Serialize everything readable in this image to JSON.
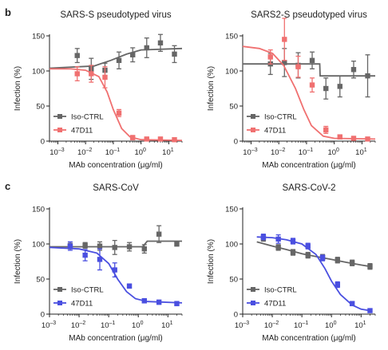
{
  "figure": {
    "panel_letters": [
      "b",
      "c"
    ]
  },
  "chart_data": [
    {
      "type": "scatter",
      "title": "SARS-S pseudotyped virus",
      "xlabel": "MAb concentration (μg/ml)",
      "ylabel": "Infection (%)",
      "xscale": "log",
      "xlim": [
        0.0005,
        30
      ],
      "ylim": [
        0,
        150
      ],
      "xticks": [
        "10^-3",
        "10^-2",
        "10^-1",
        "10^0",
        "10^1"
      ],
      "yticks": [
        0,
        50,
        100,
        150
      ],
      "legend": "bottom-left",
      "series": [
        {
          "name": "Iso-CTRL",
          "color": "#666666",
          "marker": "square",
          "x": [
            0.005,
            0.016,
            0.05,
            0.16,
            0.5,
            1.6,
            5,
            16
          ],
          "y": [
            122,
            103,
            101,
            115,
            123,
            133,
            140,
            124
          ],
          "err": [
            10,
            15,
            10,
            12,
            10,
            14,
            12,
            12
          ],
          "fit": [
            [
              0.0005,
              104
            ],
            [
              0.02,
              107
            ],
            [
              0.08,
              115
            ],
            [
              0.3,
              124
            ],
            [
              1,
              130
            ],
            [
              30,
              132
            ]
          ]
        },
        {
          "name": "47D11",
          "color": "#f07070",
          "marker": "square",
          "x": [
            0.005,
            0.016,
            0.05,
            0.16,
            0.5,
            1.6,
            5,
            16
          ],
          "y": [
            96,
            96,
            91,
            40,
            5,
            3,
            3,
            2
          ],
          "err": [
            10,
            12,
            15,
            5,
            3,
            2,
            2,
            2
          ],
          "fit": [
            [
              0.0005,
              103
            ],
            [
              0.003,
              103
            ],
            [
              0.01,
              101
            ],
            [
              0.03,
              92
            ],
            [
              0.06,
              70
            ],
            [
              0.1,
              45
            ],
            [
              0.2,
              18
            ],
            [
              0.4,
              6
            ],
            [
              1,
              2
            ],
            [
              30,
              1
            ]
          ]
        }
      ]
    },
    {
      "type": "scatter",
      "title": "SARS2-S pseudotyped virus",
      "xlabel": "MAb concentration (μg/ml)",
      "ylabel": "Infection (%)",
      "xscale": "log",
      "xlim": [
        0.0005,
        30
      ],
      "ylim": [
        0,
        150
      ],
      "xticks": [
        "10^-3",
        "10^-2",
        "10^-1",
        "10^0",
        "10^1"
      ],
      "yticks": [
        0,
        50,
        100,
        150
      ],
      "legend": "bottom-left",
      "series": [
        {
          "name": "Iso-CTRL",
          "color": "#666666",
          "marker": "square",
          "x": [
            0.005,
            0.016,
            0.05,
            0.16,
            0.5,
            1.6,
            5,
            16
          ],
          "y": [
            110,
            112,
            108,
            115,
            75,
            78,
            102,
            93
          ],
          "err": [
            15,
            20,
            18,
            12,
            15,
            15,
            12,
            30
          ],
          "fit": [
            [
              0.0005,
              110
            ],
            [
              0.3,
              110
            ],
            [
              0.31,
              93
            ],
            [
              30,
              93
            ]
          ]
        },
        {
          "name": "47D11",
          "color": "#f07070",
          "marker": "square",
          "x": [
            0.005,
            0.016,
            0.05,
            0.16,
            0.5,
            1.6,
            5,
            16
          ],
          "y": [
            120,
            145,
            106,
            80,
            16,
            6,
            4,
            3
          ],
          "err": [
            10,
            30,
            15,
            10,
            5,
            3,
            2,
            2
          ],
          "fit": [
            [
              0.0005,
              135
            ],
            [
              0.002,
              132
            ],
            [
              0.006,
              125
            ],
            [
              0.015,
              108
            ],
            [
              0.04,
              75
            ],
            [
              0.08,
              45
            ],
            [
              0.15,
              22
            ],
            [
              0.4,
              7
            ],
            [
              1,
              4
            ],
            [
              30,
              3
            ]
          ]
        }
      ]
    },
    {
      "type": "scatter",
      "title": "SARS-CoV",
      "xlabel": "MAb concentration (μg/ml)",
      "ylabel": "Infection (%)",
      "xscale": "log",
      "xlim": [
        0.001,
        30
      ],
      "ylim": [
        0,
        150
      ],
      "xticks": [
        "10^-3",
        "10^-2",
        "10^-1",
        "10^0",
        "10^1"
      ],
      "yticks": [
        0,
        50,
        100,
        150
      ],
      "legend": "bottom-left",
      "series": [
        {
          "name": "Iso-CTRL",
          "color": "#666666",
          "marker": "square",
          "x": [
            0.005,
            0.016,
            0.05,
            0.16,
            0.5,
            1.6,
            5,
            20
          ],
          "y": [
            97,
            98,
            97,
            95,
            96,
            93,
            114,
            100
          ],
          "err": [
            4,
            4,
            6,
            10,
            6,
            6,
            12,
            3
          ],
          "fit": [
            [
              0.001,
              96
            ],
            [
              1.4,
              96
            ],
            [
              2,
              104
            ],
            [
              30,
              104
            ]
          ]
        },
        {
          "name": "47D11",
          "color": "#4a4fe0",
          "marker": "square",
          "x": [
            0.005,
            0.016,
            0.05,
            0.16,
            0.5,
            1.6,
            5,
            20
          ],
          "y": [
            97,
            84,
            78,
            63,
            40,
            19,
            17,
            15
          ],
          "err": [
            6,
            8,
            15,
            10,
            3,
            3,
            3,
            3
          ],
          "fit": [
            [
              0.001,
              95
            ],
            [
              0.01,
              93
            ],
            [
              0.04,
              87
            ],
            [
              0.1,
              72
            ],
            [
              0.2,
              50
            ],
            [
              0.4,
              32
            ],
            [
              0.8,
              22
            ],
            [
              2,
              18
            ],
            [
              30,
              16
            ]
          ]
        }
      ]
    },
    {
      "type": "scatter",
      "title": "SARS-CoV-2",
      "xlabel": "MAb concentration (μg/ml)",
      "ylabel": "Infection (%)",
      "xscale": "log",
      "xlim": [
        0.001,
        30
      ],
      "ylim": [
        0,
        150
      ],
      "xticks": [
        "10^-3",
        "10^-2",
        "10^-1",
        "10^0",
        "10^1"
      ],
      "yticks": [
        0,
        50,
        100,
        150
      ],
      "legend": "bottom-left",
      "series": [
        {
          "name": "Iso-CTRL",
          "color": "#666666",
          "marker": "square",
          "x": [
            0.005,
            0.016,
            0.05,
            0.16,
            0.5,
            1.6,
            5,
            20
          ],
          "y": [
            108,
            95,
            88,
            84,
            81,
            77,
            73,
            68
          ],
          "err": [
            4,
            4,
            4,
            4,
            4,
            4,
            4,
            4
          ],
          "fit": [
            [
              0.003,
              103
            ],
            [
              0.01,
              97
            ],
            [
              0.03,
              92
            ],
            [
              0.1,
              86
            ],
            [
              0.3,
              82
            ],
            [
              1,
              78
            ],
            [
              3,
              74
            ],
            [
              10,
              70
            ],
            [
              20,
              68
            ]
          ]
        },
        {
          "name": "47D11",
          "color": "#4a4fe0",
          "marker": "square",
          "x": [
            0.005,
            0.016,
            0.05,
            0.16,
            0.5,
            1.6,
            5,
            20
          ],
          "y": [
            110,
            107,
            104,
            97,
            80,
            42,
            15,
            5
          ],
          "err": [
            4,
            6,
            4,
            4,
            4,
            4,
            3,
            2
          ],
          "fit": [
            [
              0.003,
              110
            ],
            [
              0.01,
              109
            ],
            [
              0.03,
              106
            ],
            [
              0.1,
              100
            ],
            [
              0.3,
              85
            ],
            [
              0.6,
              65
            ],
            [
              1,
              47
            ],
            [
              2,
              28
            ],
            [
              5,
              13
            ],
            [
              10,
              7
            ],
            [
              20,
              5
            ]
          ]
        }
      ]
    }
  ]
}
